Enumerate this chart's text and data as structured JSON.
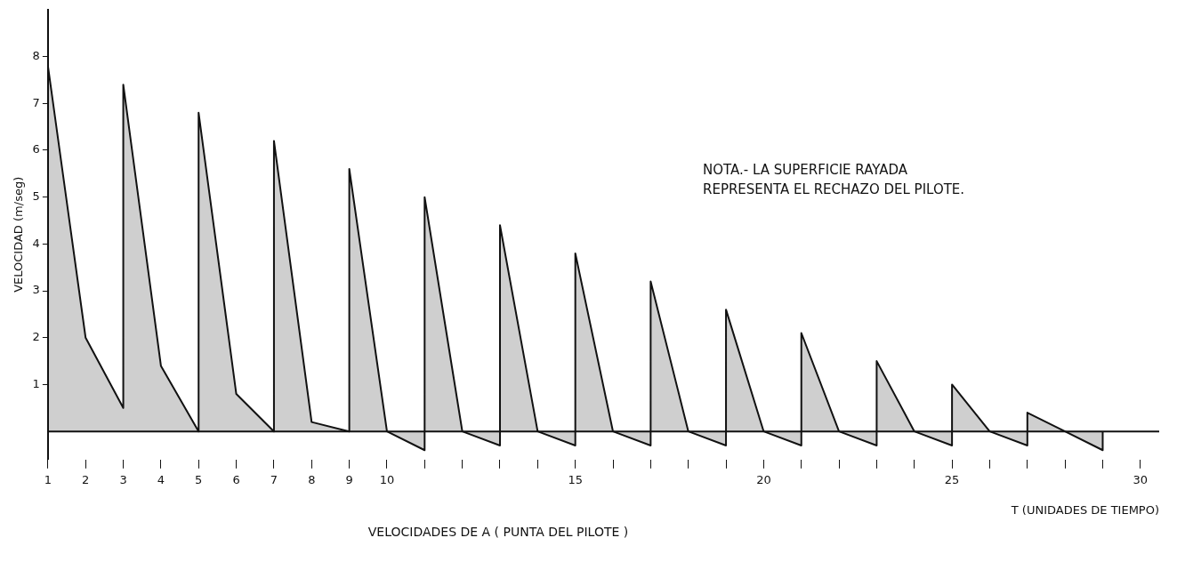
{
  "chart_data": {
    "type": "area",
    "ylabel": "VELOCIDAD (m/seg)",
    "xlabel": "T (UNIDADES DE TIEMPO)",
    "annotations": [
      "VELOCIDADES DE A ( PUNTA DEL PILOTE )",
      "NOTA.- LA SUPERFICIE RAYADA REPRESENTA EL RECHAZO DEL PILOTE."
    ],
    "series": [
      {
        "color": "#111111",
        "x": [
          1,
          1,
          2,
          3,
          3,
          4,
          5,
          5,
          6,
          7,
          7,
          8,
          9,
          9,
          10,
          11,
          11,
          12,
          13,
          13,
          14,
          15,
          15,
          16,
          17,
          17,
          18,
          19,
          19,
          20,
          21,
          21,
          22,
          23,
          23,
          24,
          25,
          25,
          26,
          27,
          27,
          28,
          29,
          29
        ],
        "values": [
          0,
          7.8,
          2.0,
          0.5,
          7.4,
          1.4,
          0,
          6.8,
          0.8,
          0,
          6.2,
          0.2,
          0,
          5.6,
          0,
          -0.4,
          5.0,
          0,
          -0.3,
          4.4,
          0,
          -0.3,
          3.8,
          0,
          -0.3,
          3.2,
          0,
          -0.3,
          2.6,
          0,
          -0.3,
          2.1,
          0,
          -0.3,
          1.5,
          0,
          -0.3,
          1.0,
          0,
          -0.3,
          0.4,
          0,
          -0.4,
          0
        ]
      }
    ],
    "xlim": [
      1,
      30.5
    ],
    "xticks": [
      1,
      2,
      3,
      4,
      5,
      6,
      7,
      8,
      9,
      10,
      {
        "value": 11,
        "label": null
      },
      {
        "value": 12,
        "label": null
      },
      {
        "value": 13,
        "label": null
      },
      {
        "value": 14,
        "label": null
      },
      15,
      {
        "value": 16,
        "label": null
      },
      {
        "value": 17,
        "label": null
      },
      {
        "value": 18,
        "label": null
      },
      {
        "value": 19,
        "label": null
      },
      20,
      {
        "value": 21,
        "label": null
      },
      {
        "value": 22,
        "label": null
      },
      {
        "value": 23,
        "label": null
      },
      {
        "value": 24,
        "label": null
      },
      25,
      {
        "value": 26,
        "label": null
      },
      {
        "value": 27,
        "label": null
      },
      {
        "value": 28,
        "label": null
      },
      {
        "value": 29,
        "label": null
      },
      30
    ],
    "ylim": [
      -0.6,
      9
    ],
    "yticks": [
      1,
      2,
      3,
      4,
      5,
      6,
      7,
      8
    ],
    "ref_lines": [
      {
        "axis": "y",
        "value": 0,
        "color": "#111111"
      }
    ],
    "grid": false,
    "legend": false,
    "marker": "none",
    "line_style": "solid"
  }
}
